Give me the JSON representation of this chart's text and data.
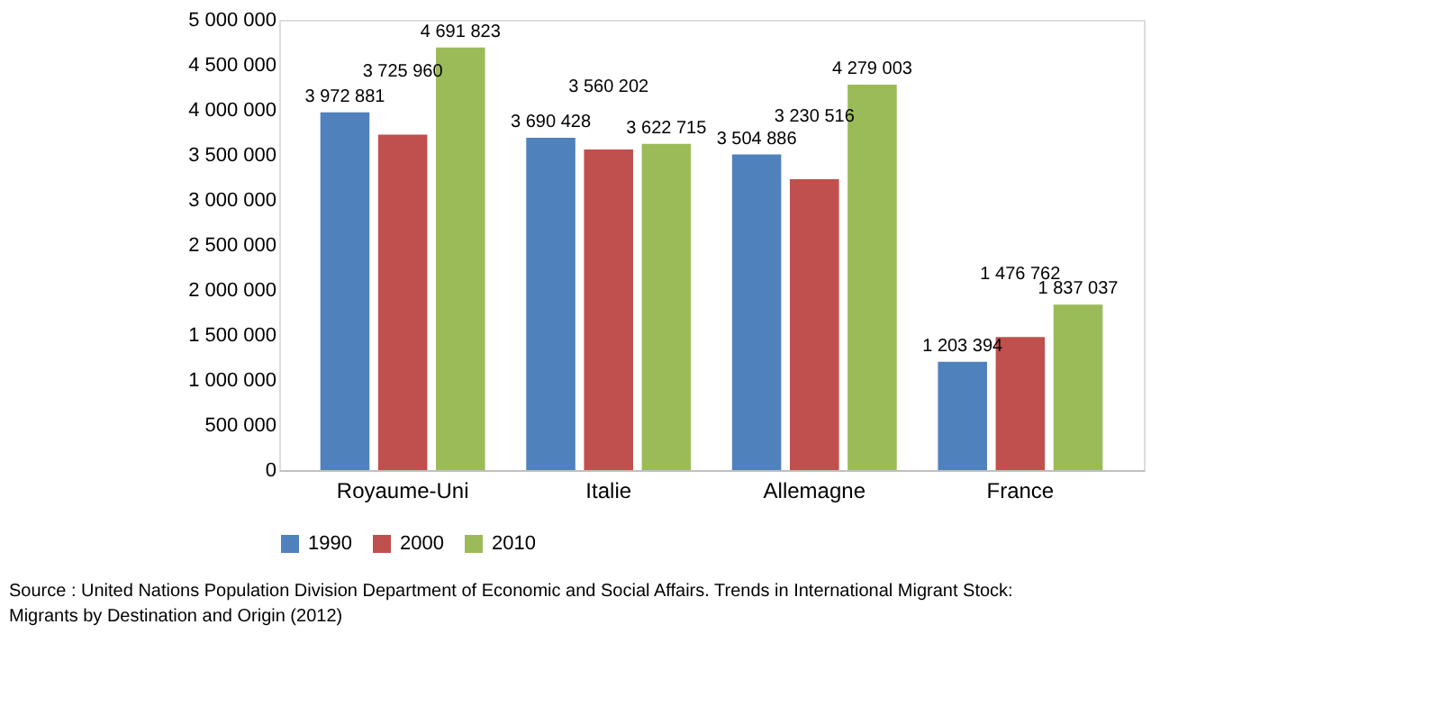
{
  "chart_data": {
    "type": "bar",
    "categories": [
      "Royaume-Uni",
      "Italie",
      "Allemagne",
      "France"
    ],
    "series": [
      {
        "name": "1990",
        "color": "#4f81bd",
        "values": [
          3972881,
          3690428,
          3504886,
          1203394
        ],
        "value_labels": [
          "3 972 881",
          "3 690 428",
          "3 504 886",
          "1 203 394"
        ]
      },
      {
        "name": "2000",
        "color": "#c0504d",
        "values": [
          3725960,
          3560202,
          3230516,
          1476762
        ],
        "value_labels": [
          "3 725 960",
          "3 560 202",
          "3 230 516",
          "1 476 762"
        ]
      },
      {
        "name": "2010",
        "color": "#9bbb59",
        "values": [
          4691823,
          3622715,
          4279003,
          1837037
        ],
        "value_labels": [
          "4 691 823",
          "3 622 715",
          "4 279 003",
          "1 837 037"
        ]
      }
    ],
    "ylim": [
      0,
      5000000
    ],
    "yticks": [
      0,
      {
        "value": 500000,
        "label": "500 000"
      },
      {
        "value": 1000000,
        "label": "1 000 000"
      },
      {
        "value": 1500000,
        "label": "1 500 000"
      },
      {
        "value": 2000000,
        "label": "2 000 000"
      },
      {
        "value": 2500000,
        "label": "2 500 000"
      },
      {
        "value": 3000000,
        "label": "3 000 000"
      },
      {
        "value": 3500000,
        "label": "3 500 000"
      },
      {
        "value": 4000000,
        "label": "4 000 000"
      },
      {
        "value": 4500000,
        "label": "4 500 000"
      },
      {
        "value": 5000000,
        "label": "5 000 000"
      }
    ],
    "grid": false,
    "legend": "bottom",
    "annotations": [
      "Source : United Nations Population Division Department of Economic and Social Affairs. Trends in International Migrant Stock:",
      "Migrants by Destination and Origin (2012)"
    ]
  }
}
